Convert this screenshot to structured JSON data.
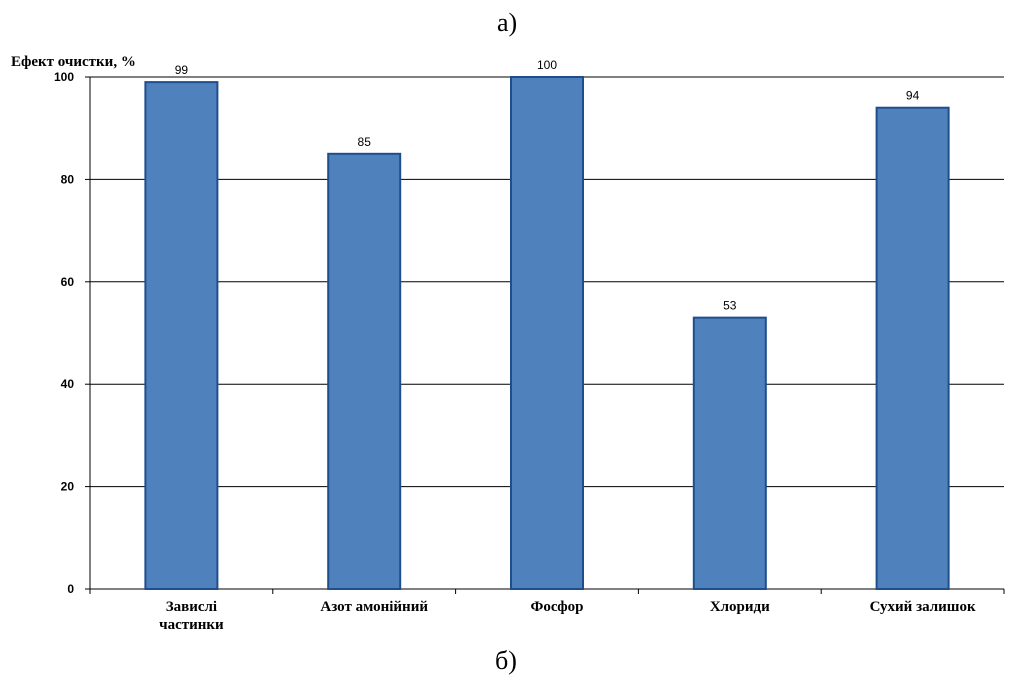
{
  "captions": {
    "top": "а)",
    "bottom": "б)"
  },
  "chart_data": {
    "type": "bar",
    "ylabel": "Ефект очистки, %",
    "xlabel": "",
    "categories": [
      [
        "Завислі",
        "частинки"
      ],
      [
        "Азот амонійний"
      ],
      [
        "Фосфор"
      ],
      [
        "Хлориди"
      ],
      [
        "Сухий залишок"
      ]
    ],
    "values": [
      99,
      85,
      100,
      53,
      94
    ],
    "ylim": [
      0,
      100
    ],
    "yticks": [
      0,
      20,
      40,
      60,
      80,
      100
    ],
    "grid": true,
    "legend": "none",
    "data_labels": true,
    "colors": {
      "bar_fill": "#4f81bd",
      "bar_stroke": "#1f4e8c"
    }
  }
}
